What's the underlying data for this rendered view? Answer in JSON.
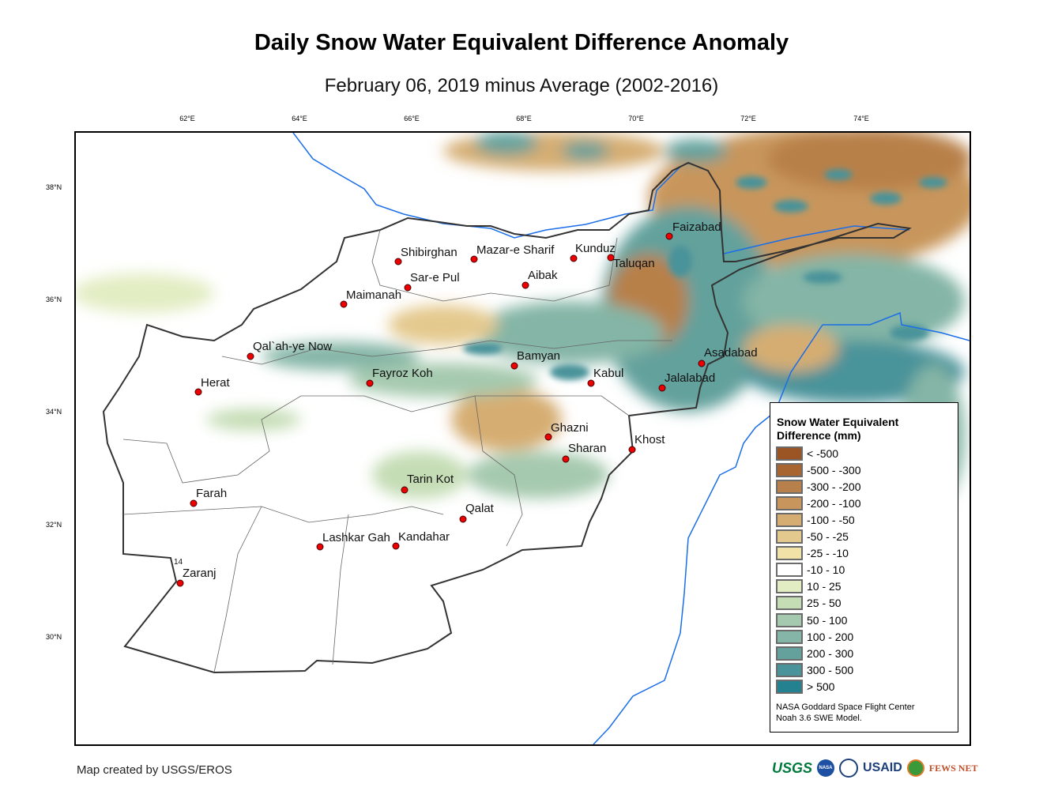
{
  "title": "Daily Snow Water Equivalent Difference Anomaly",
  "subtitle": "February 06, 2019 minus Average (2002-2016)",
  "lon_ticks": [
    "62°E",
    "64°E",
    "66°E",
    "68°E",
    "70°E",
    "72°E",
    "74°E"
  ],
  "lat_ticks": [
    "38°N",
    "36°N",
    "34°N",
    "32°N",
    "30°N"
  ],
  "cities": [
    "Faizabad",
    "Shibirghan",
    "Mazar-e Sharif",
    "Kunduz",
    "Taluqan",
    "Sar-e Pul",
    "Aibak",
    "Maimanah",
    "Qal`ah-ye Now",
    "Bamyan",
    "Asadabad",
    "Herat",
    "Fayroz Koh",
    "Kabul",
    "Jalalabad",
    "Ghazni",
    "Khost",
    "Sharan",
    "Tarin Kot",
    "Farah",
    "Qalat",
    "Lashkar Gah",
    "Kandahar",
    "Zaranj"
  ],
  "legend": {
    "title_line1": "Snow Water Equivalent",
    "title_line2": "Difference (mm)",
    "items": [
      {
        "label": "< -500",
        "color": "#9b5423"
      },
      {
        "label": "-500 - -300",
        "color": "#a8652f"
      },
      {
        "label": "-300 - -200",
        "color": "#b8804a"
      },
      {
        "label": "-200 - -100",
        "color": "#c8965c"
      },
      {
        "label": "-100 - -50",
        "color": "#d5ad72"
      },
      {
        "label": "-50 - -25",
        "color": "#e4c98e"
      },
      {
        "label": "-25 - -10",
        "color": "#f1e3a8"
      },
      {
        "label": "-10 - 10",
        "color": "#ffffff"
      },
      {
        "label": "10 - 25",
        "color": "#e2edc3"
      },
      {
        "label": "25 - 50",
        "color": "#c5ddb5"
      },
      {
        "label": "50 - 100",
        "color": "#a5c9ae"
      },
      {
        "label": "100 - 200",
        "color": "#84b5a6"
      },
      {
        "label": "200 - 300",
        "color": "#64a19c"
      },
      {
        "label": "300 - 500",
        "color": "#4a939a"
      },
      {
        "label": "> 500",
        "color": "#24818f"
      }
    ],
    "credit_line1": "NASA Goddard Space Flight Center",
    "credit_line2": "Noah 3.6 SWE Model."
  },
  "footer": "Map created by USGS/EROS",
  "logos": {
    "usgs": "USGS",
    "nasa": "NASA",
    "usaid": "USAID",
    "fewsnet": "FEWS NET"
  },
  "marker_label": "14"
}
